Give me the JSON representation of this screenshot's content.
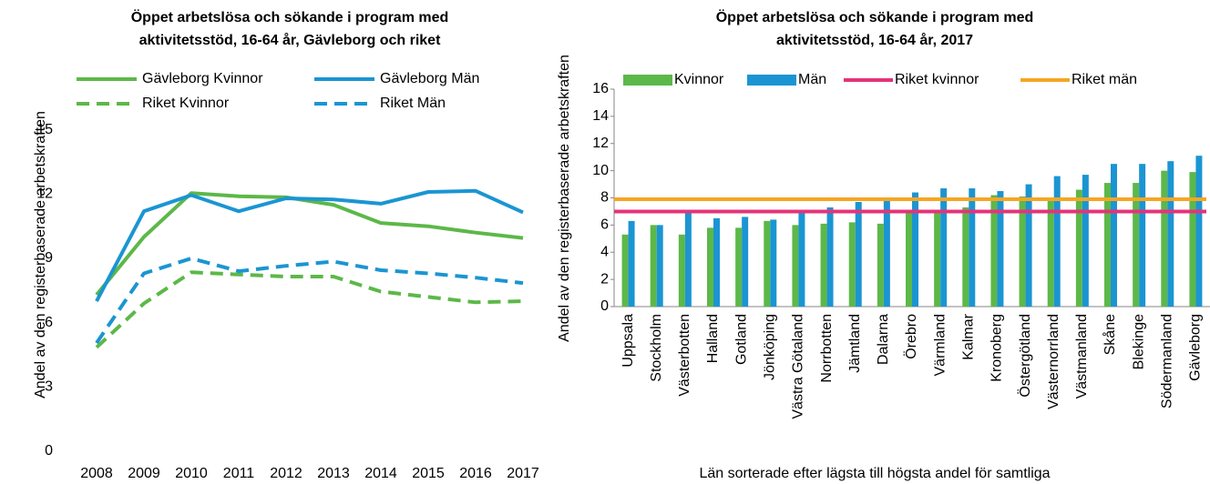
{
  "chart_data": [
    {
      "type": "line",
      "title": "Öppet arbetslösa och sökande i program med aktivitetsstöd, 16-64 år, Gävleborg och riket",
      "y_label": "Andel av den registerbaserade arbetskraften",
      "categories": [
        "2008",
        "2009",
        "2010",
        "2011",
        "2012",
        "2013",
        "2014",
        "2015",
        "2016",
        "2017"
      ],
      "ylim": [
        0,
        18
      ],
      "yticks": [
        0,
        3,
        6,
        9,
        12,
        15
      ],
      "series": [
        {
          "name": "Gävleborg Kvinnor",
          "color": "#5cb848",
          "dash": false,
          "values": [
            7.3,
            10.0,
            12.05,
            11.9,
            11.85,
            11.5,
            10.65,
            10.5,
            10.2,
            9.95
          ]
        },
        {
          "name": "Gävleborg Män",
          "color": "#1b95d2",
          "dash": false,
          "values": [
            7.0,
            11.2,
            11.95,
            11.2,
            11.8,
            11.75,
            11.55,
            12.1,
            12.15,
            11.15
          ]
        },
        {
          "name": "Riket Kvinnor",
          "color": "#5cb848",
          "dash": true,
          "values": [
            4.85,
            6.9,
            8.35,
            8.25,
            8.15,
            8.15,
            7.45,
            7.2,
            6.95,
            7.0
          ]
        },
        {
          "name": "Riket Män",
          "color": "#1b95d2",
          "dash": true,
          "values": [
            5.05,
            8.3,
            9.0,
            8.4,
            8.65,
            8.85,
            8.45,
            8.3,
            8.1,
            7.85
          ]
        }
      ]
    },
    {
      "type": "bar",
      "title": "Öppet arbetslösa och sökande i program med aktivitetsstöd, 16-64 år, 2017",
      "y_label": "Andel av den registerbaserade arbetskraften",
      "x_label": "Län sorterade efter lägsta till högsta andel för samtliga",
      "categories": [
        "Uppsala",
        "Stockholm",
        "Västerbotten",
        "Halland",
        "Gotland",
        "Jönköping",
        "Västra Götaland",
        "Norrbotten",
        "Jämtland",
        "Dalarna",
        "Örebro",
        "Värmland",
        "Kalmar",
        "Kronoberg",
        "Östergötland",
        "Västernorrland",
        "Västmanland",
        "Skåne",
        "Blekinge",
        "Södermanland",
        "Gävleborg"
      ],
      "ylim": [
        0,
        16
      ],
      "yticks": [
        0,
        2,
        4,
        6,
        8,
        10,
        12,
        14,
        16
      ],
      "series": [
        {
          "name": "Kvinnor",
          "color": "#5cb848",
          "values": [
            5.3,
            6.0,
            5.3,
            5.8,
            5.8,
            6.3,
            6.0,
            6.1,
            6.2,
            6.1,
            6.9,
            7.0,
            7.3,
            8.2,
            8.1,
            7.8,
            8.6,
            9.1,
            9.1,
            10.0,
            9.9
          ]
        },
        {
          "name": "Män",
          "color": "#1b95d2",
          "values": [
            6.3,
            6.0,
            6.9,
            6.5,
            6.6,
            6.4,
            6.9,
            7.3,
            7.7,
            8.0,
            8.4,
            8.7,
            8.7,
            8.5,
            9.0,
            9.6,
            9.7,
            10.5,
            10.5,
            10.7,
            11.1
          ]
        }
      ],
      "reference_lines": [
        {
          "name": "Riket kvinnor",
          "color": "#e4337a",
          "value": 7.0
        },
        {
          "name": "Riket män",
          "color": "#f5a623",
          "value": 7.9
        }
      ]
    }
  ]
}
